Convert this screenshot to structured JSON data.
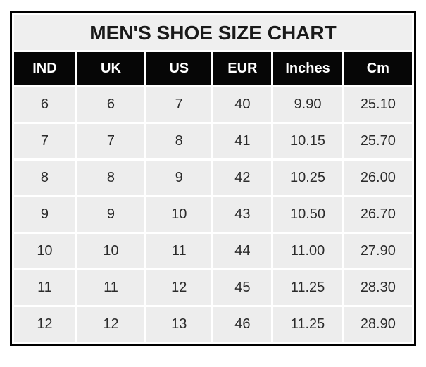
{
  "chart_data": {
    "type": "table",
    "title": "MEN'S SHOE SIZE CHART",
    "columns": [
      "IND",
      "UK",
      "US",
      "EUR",
      "Inches",
      "Cm"
    ],
    "rows": [
      [
        "6",
        "6",
        "7",
        "40",
        "9.90",
        "25.10"
      ],
      [
        "7",
        "7",
        "8",
        "41",
        "10.15",
        "25.70"
      ],
      [
        "8",
        "8",
        "9",
        "42",
        "10.25",
        "26.00"
      ],
      [
        "9",
        "9",
        "10",
        "43",
        "10.50",
        "26.70"
      ],
      [
        "10",
        "10",
        "11",
        "44",
        "11.00",
        "27.90"
      ],
      [
        "11",
        "11",
        "12",
        "45",
        "11.25",
        "28.30"
      ],
      [
        "12",
        "12",
        "13",
        "46",
        "11.25",
        "28.90"
      ]
    ],
    "layout": {
      "grid": "white 3px gaps between cells",
      "legend_position": "none"
    }
  },
  "colors": {
    "outer_border": "#000000",
    "title_background": "#efefef",
    "header_background": "#060606",
    "header_text": "#ffffff",
    "cell_background": "#ededed",
    "cell_text": "#2b2b2b",
    "page_background": "#ffffff"
  }
}
